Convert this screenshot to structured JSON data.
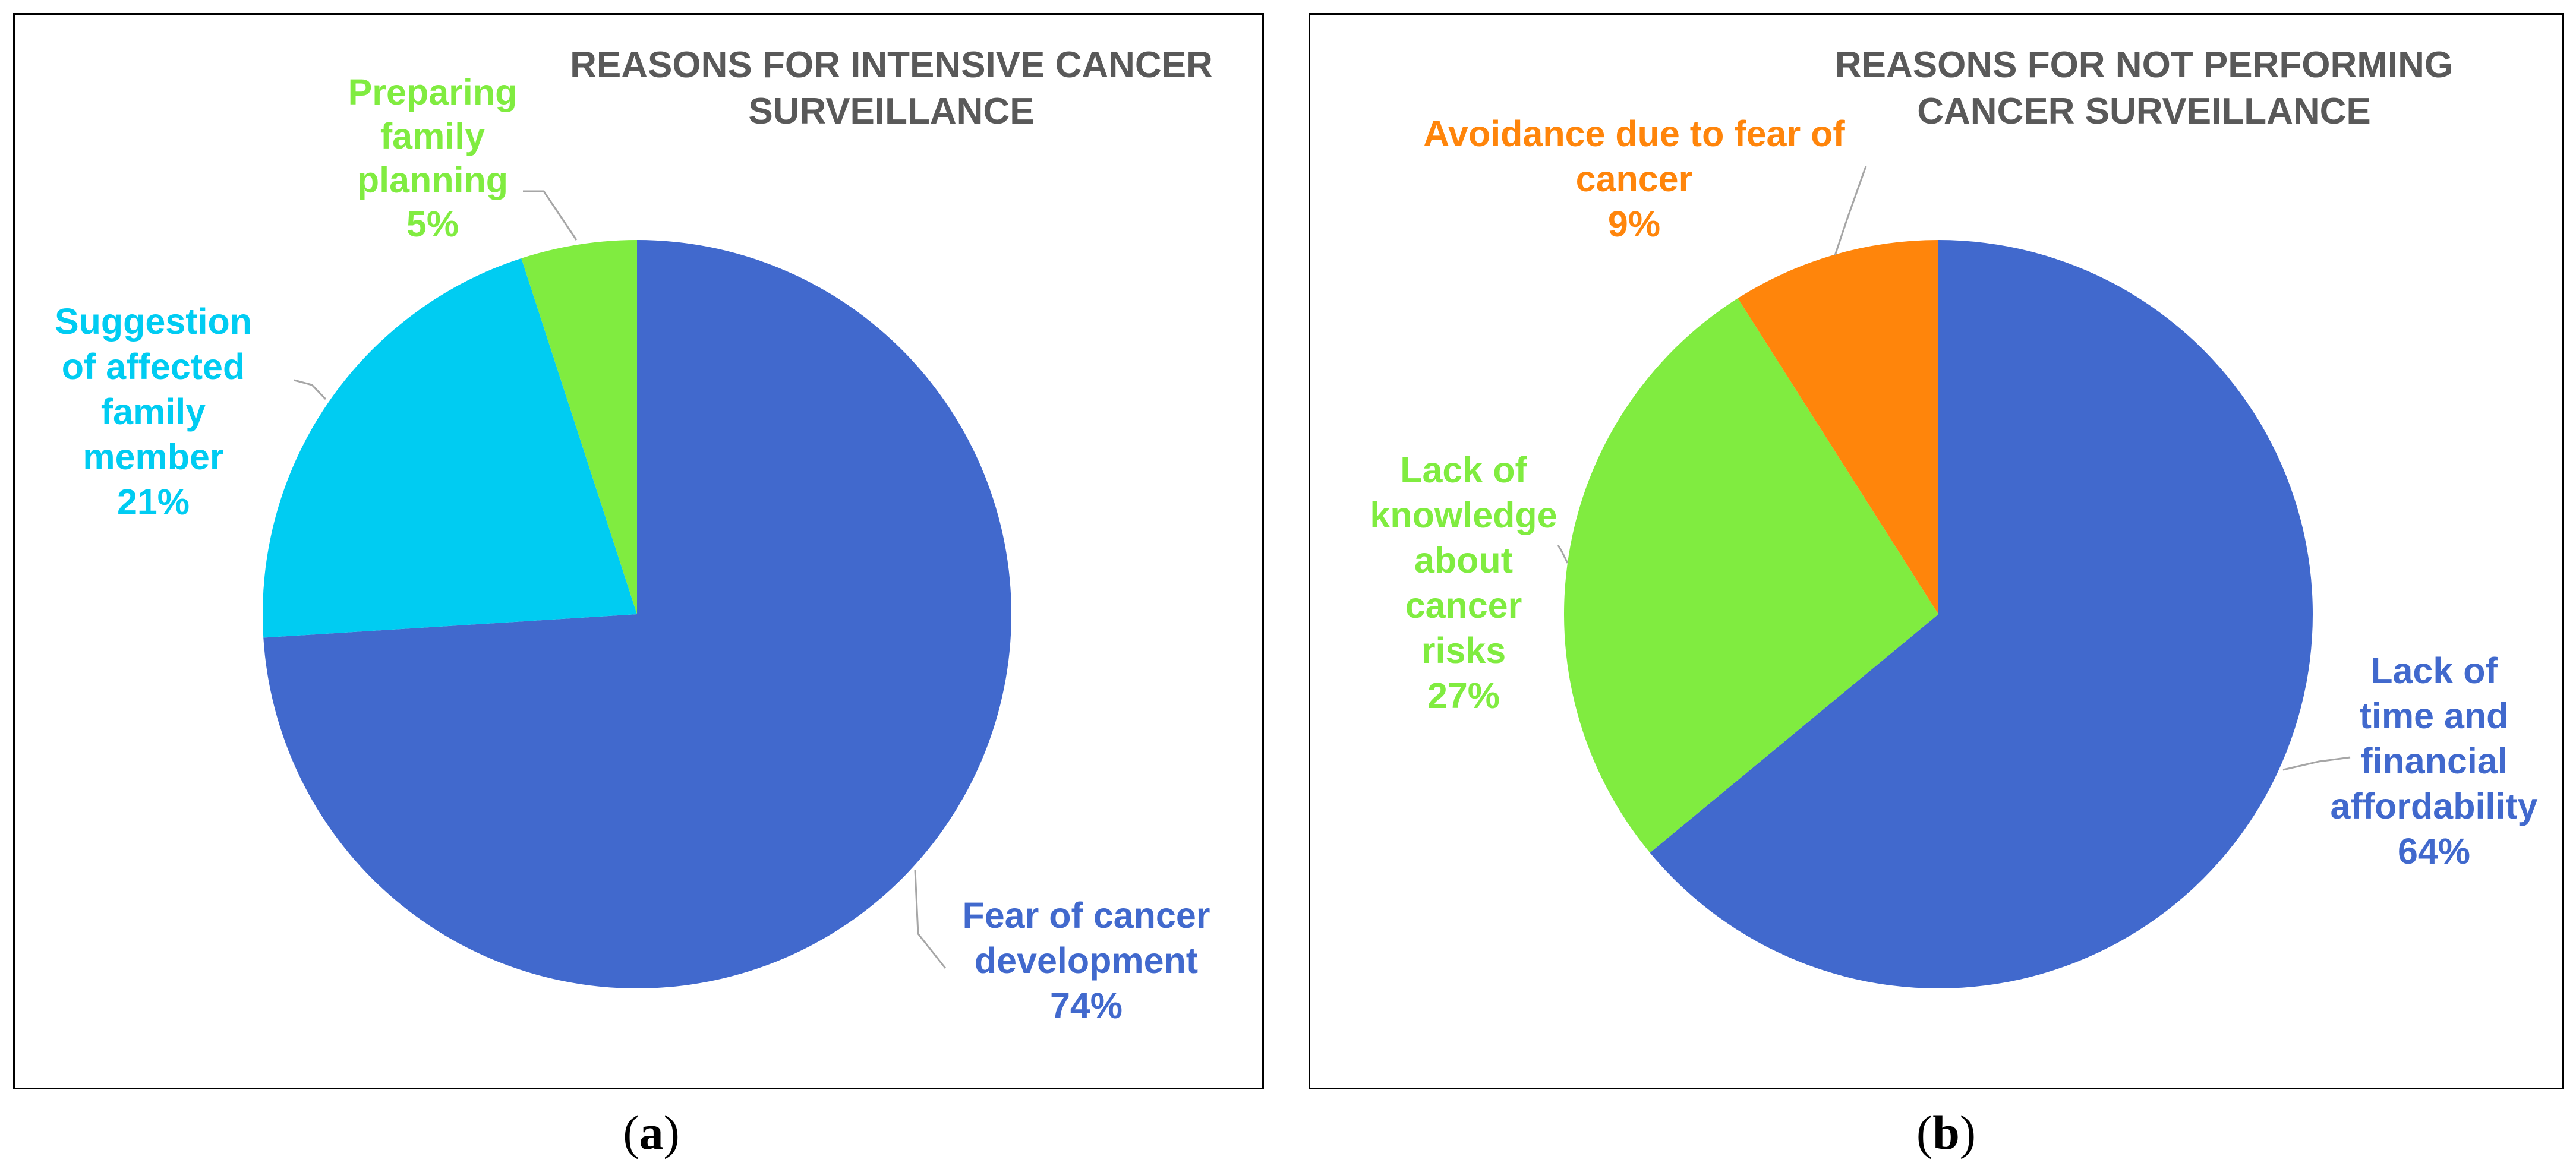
{
  "chart_data": [
    {
      "type": "pie",
      "panel": "a",
      "caption_open": "(",
      "caption_letter": "a",
      "caption_close": ")",
      "title_lines": [
        "REASONS FOR INTENSIVE CANCER",
        "SURVEILLANCE"
      ],
      "slices": [
        {
          "label_lines": [
            "Fear of cancer",
            "development"
          ],
          "value_text": "74%",
          "value": 74,
          "color": "#4169CD"
        },
        {
          "label_lines": [
            "Suggestion",
            "of affected",
            "family",
            "member"
          ],
          "value_text": "21%",
          "value": 21,
          "color": "#00CCF2"
        },
        {
          "label_lines": [
            "Preparing",
            "family",
            "planning"
          ],
          "value_text": "5%",
          "value": 5,
          "color": "#80EC40"
        }
      ],
      "title_color": "#595959",
      "start_angle_deg": 0,
      "direction": "clockwise"
    },
    {
      "type": "pie",
      "panel": "b",
      "caption_open": "(",
      "caption_letter": "b",
      "caption_close": ")",
      "title_lines": [
        "REASONS FOR NOT PERFORMING",
        "CANCER SURVEILLANCE"
      ],
      "slices": [
        {
          "label_lines": [
            "Lack of",
            "time and",
            "financial",
            "affordability"
          ],
          "value_text": "64%",
          "value": 64,
          "color": "#4169CD"
        },
        {
          "label_lines": [
            "Lack of",
            "knowledge",
            "about",
            "cancer",
            "risks"
          ],
          "value_text": "27%",
          "value": 27,
          "color": "#80EC40"
        },
        {
          "label_lines": [
            "Avoidance due to fear of",
            "cancer"
          ],
          "value_text": "9%",
          "value": 9,
          "color": "#FF850B"
        }
      ],
      "title_color": "#595959",
      "start_angle_deg": 0,
      "direction": "clockwise"
    }
  ]
}
